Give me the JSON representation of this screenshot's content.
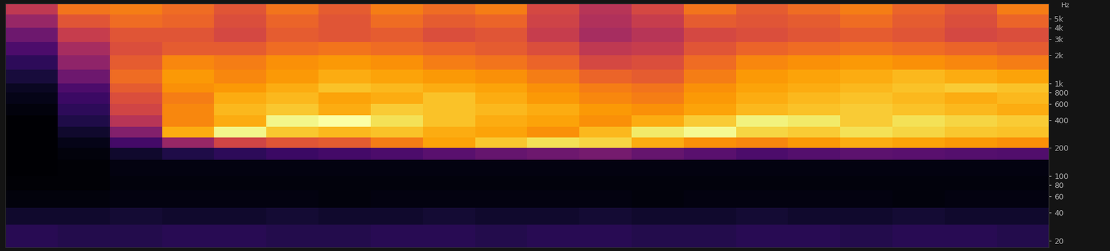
{
  "chart_data": {
    "type": "heatmap",
    "ylabel": "Hz",
    "log": "y",
    "color": "inferno",
    "tick_labels": "y",
    "xlim": [
      0,
      20
    ],
    "ylim": [
      17,
      7200
    ],
    "yticks": [
      20,
      40,
      60,
      80,
      100,
      200,
      400,
      600,
      800,
      {
        "value": 1000,
        "label": "1k"
      },
      {
        "value": 2000,
        "label": "2k"
      },
      {
        "value": 3000,
        "label": "3k"
      },
      {
        "value": 4000,
        "label": "4k"
      },
      {
        "value": 5000,
        "label": "5k"
      }
    ],
    "y_edges": [
      17,
      30,
      45,
      70,
      100,
      150,
      200,
      260,
      340,
      450,
      600,
      800,
      1000,
      1400,
      2000,
      2800,
      4000,
      5500,
      7200
    ],
    "cells": [
      [
        14,
        13,
        13,
        14,
        14,
        13,
        13,
        14,
        14,
        13,
        14,
        14,
        13,
        13,
        14,
        14,
        13,
        14,
        14,
        13
      ],
      [
        8,
        8,
        9,
        8,
        8,
        9,
        8,
        8,
        9,
        8,
        8,
        9,
        8,
        8,
        9,
        8,
        8,
        9,
        8,
        8
      ],
      [
        2,
        2,
        3,
        3,
        3,
        3,
        2,
        3,
        3,
        3,
        3,
        3,
        2,
        3,
        3,
        3,
        3,
        2,
        3,
        3
      ],
      [
        1,
        1,
        2,
        2,
        2,
        2,
        2,
        2,
        2,
        2,
        2,
        2,
        2,
        2,
        2,
        2,
        2,
        2,
        2,
        2
      ],
      [
        0,
        1,
        3,
        3,
        3,
        3,
        3,
        3,
        3,
        3,
        3,
        3,
        3,
        3,
        3,
        3,
        3,
        3,
        3,
        3
      ],
      [
        0,
        2,
        8,
        12,
        15,
        18,
        20,
        22,
        25,
        28,
        30,
        32,
        28,
        25,
        22,
        24,
        26,
        25,
        24,
        23
      ],
      [
        0,
        4,
        20,
        40,
        55,
        60,
        62,
        70,
        78,
        85,
        90,
        88,
        80,
        74,
        72,
        76,
        80,
        78,
        76,
        74
      ],
      [
        0,
        8,
        35,
        80,
        95,
        85,
        82,
        84,
        80,
        78,
        74,
        82,
        92,
        96,
        88,
        86,
        90,
        88,
        85,
        84
      ],
      [
        0,
        12,
        48,
        72,
        80,
        95,
        98,
        90,
        84,
        80,
        78,
        74,
        80,
        86,
        94,
        92,
        86,
        90,
        88,
        86
      ],
      [
        2,
        15,
        55,
        72,
        82,
        85,
        80,
        86,
        84,
        82,
        80,
        76,
        74,
        78,
        82,
        84,
        86,
        84,
        82,
        80
      ],
      [
        4,
        18,
        58,
        70,
        80,
        82,
        78,
        80,
        84,
        80,
        76,
        72,
        70,
        76,
        80,
        82,
        84,
        82,
        80,
        82
      ],
      [
        6,
        22,
        62,
        74,
        76,
        80,
        84,
        82,
        80,
        78,
        74,
        70,
        68,
        74,
        78,
        80,
        82,
        84,
        86,
        84
      ],
      [
        10,
        30,
        66,
        76,
        72,
        76,
        80,
        78,
        76,
        74,
        70,
        64,
        62,
        70,
        76,
        78,
        80,
        82,
        80,
        78
      ],
      [
        15,
        38,
        62,
        72,
        70,
        74,
        76,
        74,
        70,
        68,
        64,
        56,
        58,
        66,
        72,
        74,
        76,
        74,
        72,
        70
      ],
      [
        22,
        44,
        58,
        62,
        62,
        66,
        68,
        66,
        64,
        62,
        58,
        50,
        52,
        60,
        64,
        66,
        68,
        66,
        64,
        62
      ],
      [
        30,
        52,
        60,
        60,
        56,
        62,
        60,
        62,
        58,
        60,
        52,
        44,
        48,
        56,
        58,
        60,
        62,
        60,
        56,
        58
      ],
      [
        40,
        60,
        66,
        64,
        58,
        64,
        60,
        66,
        62,
        64,
        54,
        46,
        52,
        62,
        60,
        62,
        66,
        62,
        58,
        64
      ],
      [
        50,
        68,
        70,
        66,
        60,
        68,
        62,
        70,
        66,
        70,
        56,
        48,
        56,
        68,
        62,
        66,
        70,
        64,
        60,
        70
      ]
    ]
  }
}
